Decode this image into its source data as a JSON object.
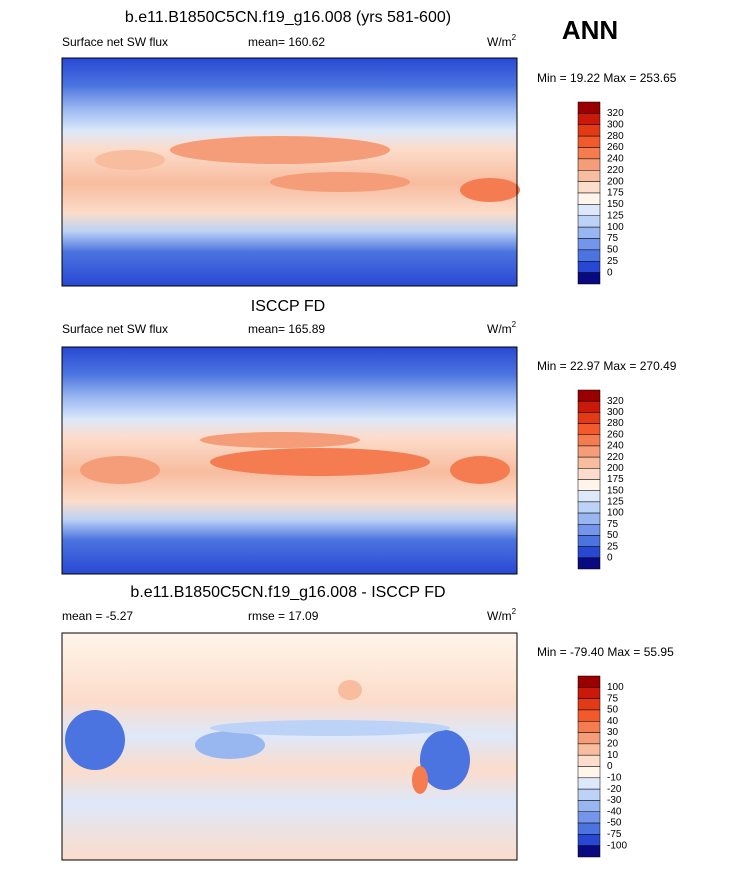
{
  "season": "ANN",
  "panels": [
    {
      "title": "b.e11.B1850C5CN.f19_g16.008 (yrs 581-600)",
      "left": "Surface net SW flux",
      "center": "mean= 160.62",
      "units": "W/m",
      "units_sup": "2",
      "minmax": "Min =  19.22 Max = 253.65",
      "colorbar": {
        "labels": [
          "320",
          "300",
          "280",
          "260",
          "240",
          "220",
          "200",
          "175",
          "150",
          "125",
          "100",
          "75",
          "50",
          "25",
          "0"
        ],
        "colors": [
          "#9a0000",
          "#c8190a",
          "#e23a14",
          "#f25a2c",
          "#f57c50",
          "#f59c78",
          "#f8bc9f",
          "#fcdcca",
          "#fff5ea",
          "#dde8fa",
          "#bcd2f6",
          "#98b6f0",
          "#7496ea",
          "#4c74e0",
          "#2848d4",
          "#0a0a80"
        ]
      }
    },
    {
      "title": "ISCCP FD",
      "left": "Surface net SW flux",
      "center": "mean= 165.89",
      "units": "W/m",
      "units_sup": "2",
      "minmax": "Min =  22.97 Max = 270.49",
      "colorbar": {
        "labels": [
          "320",
          "300",
          "280",
          "260",
          "240",
          "220",
          "200",
          "175",
          "150",
          "125",
          "100",
          "75",
          "50",
          "25",
          "0"
        ],
        "colors": [
          "#9a0000",
          "#c8190a",
          "#e23a14",
          "#f25a2c",
          "#f57c50",
          "#f59c78",
          "#f8bc9f",
          "#fcdcca",
          "#fff5ea",
          "#dde8fa",
          "#bcd2f6",
          "#98b6f0",
          "#7496ea",
          "#4c74e0",
          "#2848d4",
          "#0a0a80"
        ]
      }
    },
    {
      "title": "b.e11.B1850C5CN.f19_g16.008 - ISCCP FD",
      "left": "mean =  -5.27",
      "center": "rmse =  17.09",
      "units": "W/m",
      "units_sup": "2",
      "minmax": "Min = -79.40 Max =  55.95",
      "colorbar": {
        "labels": [
          "100",
          "75",
          "50",
          "40",
          "30",
          "20",
          "10",
          "0",
          "-10",
          "-20",
          "-30",
          "-40",
          "-50",
          "-75",
          "-100"
        ],
        "colors": [
          "#9a0000",
          "#c8190a",
          "#e23a14",
          "#f25a2c",
          "#f57c50",
          "#f59c78",
          "#f8bc9f",
          "#fcdcca",
          "#fff5ea",
          "#dde8fa",
          "#bcd2f6",
          "#98b6f0",
          "#7496ea",
          "#4c74e0",
          "#2848d4",
          "#0a0a80"
        ]
      }
    }
  ]
}
